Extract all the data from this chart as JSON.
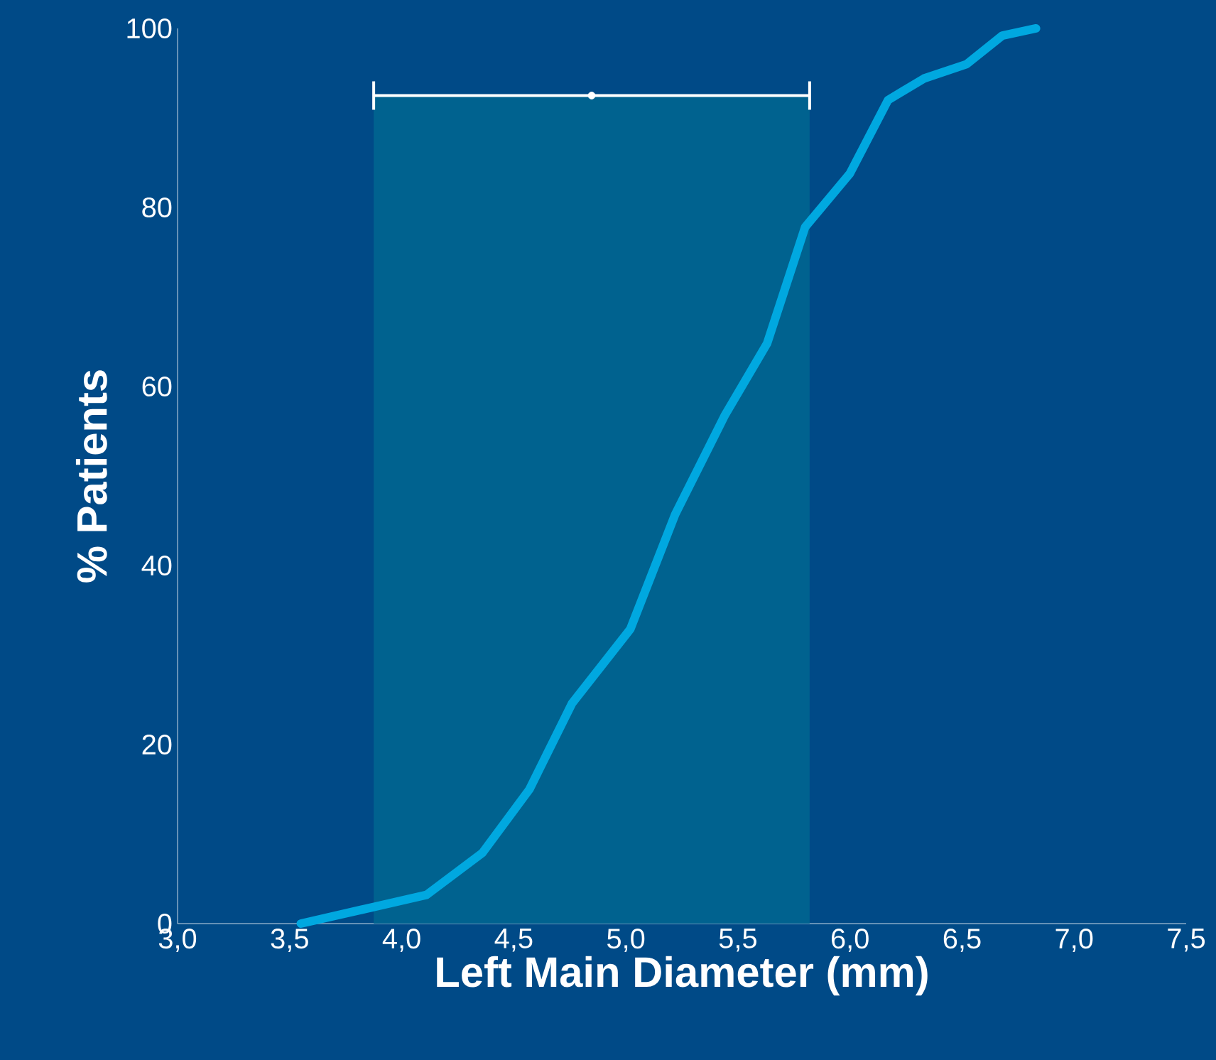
{
  "chart_data": {
    "type": "line",
    "xlabel": "Left Main Diameter (mm)",
    "ylabel": "% Patients",
    "series": [
      {
        "color": "#00a8e0",
        "x": [
          3.55,
          4.11,
          4.36,
          4.57,
          4.76,
          5.02,
          5.22,
          5.44,
          5.63,
          5.8,
          6.0,
          6.17,
          6.33,
          6.52,
          6.68,
          6.83
        ],
        "values": [
          0,
          3.2,
          7.9,
          15,
          24.6,
          32.9,
          45.7,
          56.7,
          64.8,
          77.8,
          83.8,
          92,
          94.4,
          96,
          99.2,
          100
        ]
      },
      {
        "type": "scatter",
        "color": "#ffffff",
        "x": [
          4.8475
        ],
        "values": [
          92.5
        ],
        "xerrors": [
          0.9725
        ]
      }
    ],
    "xlim": [
      3.0,
      7.5
    ],
    "xticks": [
      {
        "value": 3.0,
        "label": "3,0"
      },
      {
        "value": 3.5,
        "label": "3,5"
      },
      {
        "value": 4.0,
        "label": "4,0"
      },
      {
        "value": 4.5,
        "label": "4,5"
      },
      {
        "value": 5.0,
        "label": "5,0"
      },
      {
        "value": 5.5,
        "label": "5,5"
      },
      {
        "value": 6.0,
        "label": "6,0"
      },
      {
        "value": 6.5,
        "label": "6,5"
      },
      {
        "value": 7.0,
        "label": "7,0"
      },
      {
        "value": 7.5,
        "label": "7,5"
      }
    ],
    "ylim": [
      0,
      100
    ],
    "yticks": [
      0,
      20,
      40,
      60,
      80,
      100
    ],
    "bands": [
      {
        "axis": "x",
        "from": 3.875,
        "to": 5.82,
        "color": "#00628f"
      }
    ],
    "grid": false,
    "line_style": "solid"
  }
}
